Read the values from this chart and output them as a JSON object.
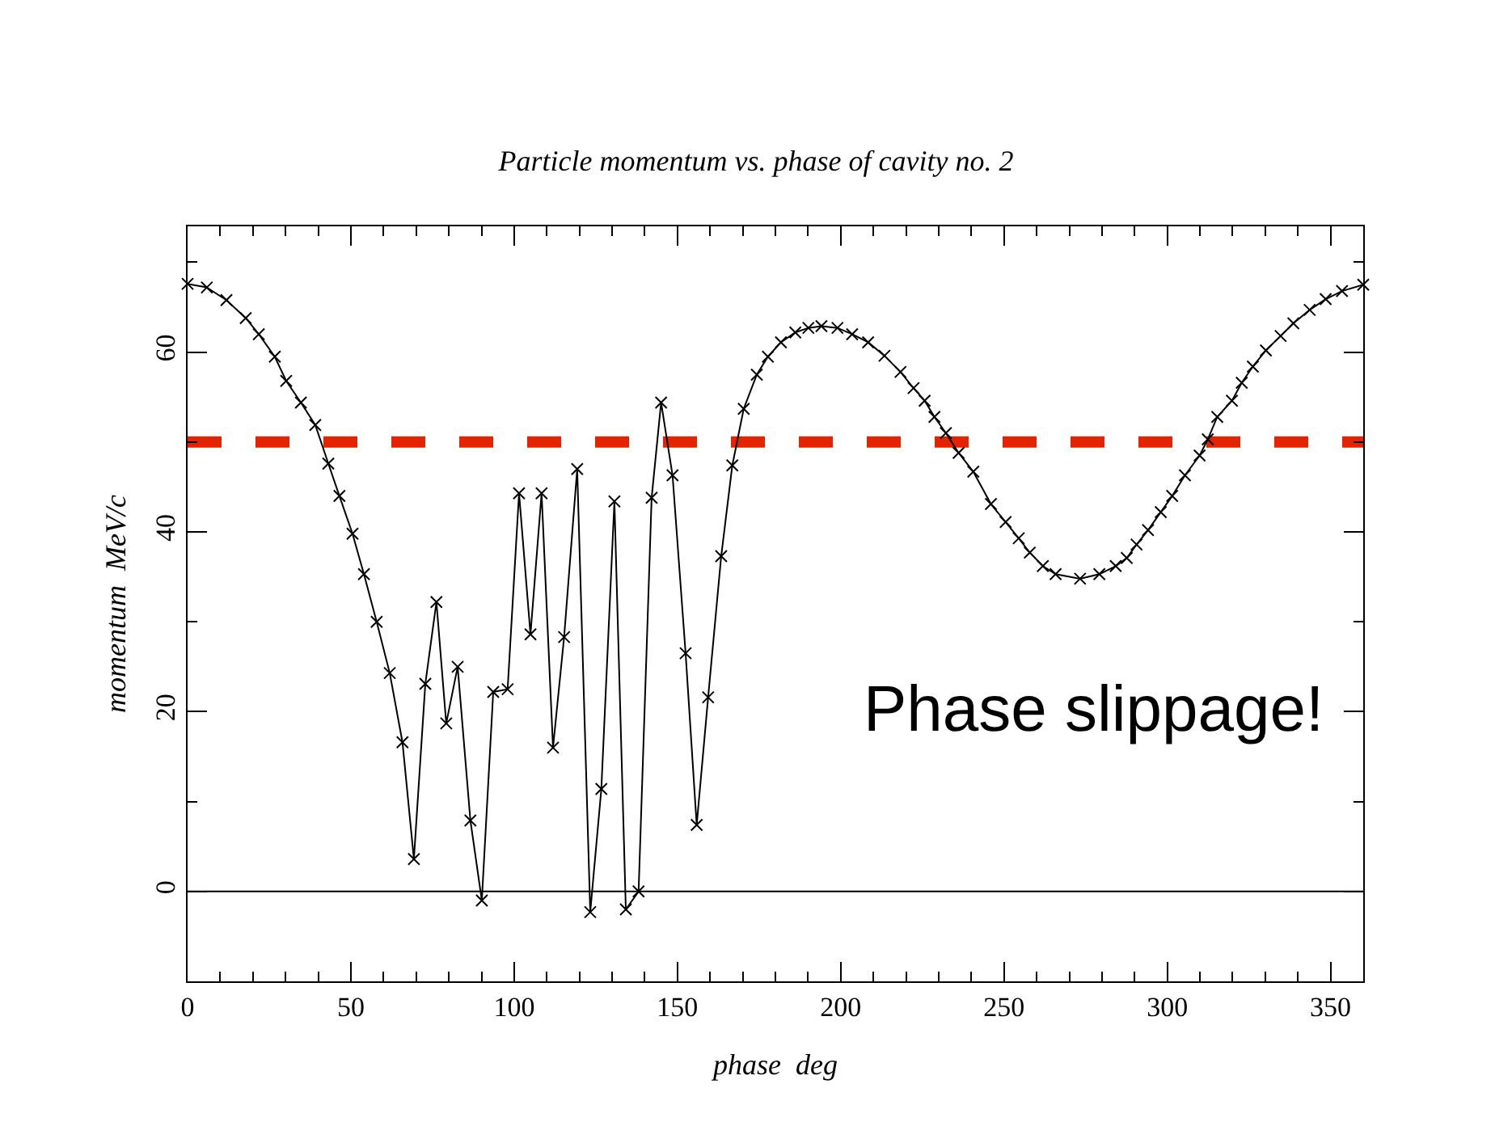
{
  "chart_data": {
    "type": "line",
    "title": "Particle momentum vs. phase of cavity no. 2",
    "xlabel": "phase  deg",
    "ylabel": "momentum  MeV/c",
    "x": [
      0,
      5.9,
      11.9,
      17.8,
      21.8,
      26.7,
      30.2,
      34.7,
      39.1,
      43.1,
      46.5,
      50.5,
      54,
      57.9,
      61.9,
      65.8,
      69.3,
      72.8,
      76.2,
      79.2,
      82.7,
      86.6,
      90.1,
      93.6,
      98,
      101.5,
      105,
      108.4,
      111.9,
      115.3,
      119.3,
      123.3,
      126.7,
      130.7,
      134.2,
      138.1,
      142.1,
      145,
      148.5,
      152.5,
      155.9,
      159.4,
      163.4,
      166.8,
      170.3,
      174.3,
      177.7,
      181.7,
      186.1,
      190.1,
      194.1,
      199,
      203.5,
      208.4,
      213.4,
      218.3,
      222.3,
      225.7,
      228.7,
      232.2,
      236.1,
      240.6,
      246,
      250.5,
      254.5,
      257.9,
      261.9,
      265.8,
      273.3,
      279.2,
      284.2,
      287.6,
      290.6,
      294.1,
      298,
      301.5,
      305.4,
      309.9,
      312.4,
      315.3,
      319.8,
      322.8,
      326.2,
      330.2,
      334.7,
      338.6,
      343.6,
      348.5,
      353.5,
      360
    ],
    "series": [
      {
        "color": "#000000",
        "values": [
          67.6,
          67.2,
          65.8,
          63.8,
          62,
          59.5,
          56.8,
          54.4,
          51.9,
          47.6,
          44,
          39.8,
          35.3,
          30,
          24.3,
          16.6,
          3.6,
          23.1,
          32.2,
          18.7,
          25,
          7.9,
          -1,
          22.2,
          22.5,
          44.3,
          28.6,
          44.3,
          16,
          28.3,
          47,
          -2.3,
          11.4,
          43.4,
          -2,
          0,
          43.8,
          54.4,
          46.3,
          26.5,
          7.4,
          21.6,
          37.3,
          47.4,
          53.7,
          57.5,
          59.5,
          61.1,
          62.2,
          62.7,
          62.9,
          62.7,
          62,
          61.1,
          59.6,
          57.8,
          56,
          54.6,
          52.8,
          51,
          48.8,
          46.7,
          43.1,
          41.1,
          39.3,
          37.7,
          36.2,
          35.3,
          34.8,
          35.3,
          36.2,
          37.1,
          38.6,
          40.2,
          42.2,
          44,
          46.3,
          48.5,
          50.3,
          52.8,
          54.6,
          56.6,
          58.4,
          60.2,
          61.8,
          63.2,
          64.7,
          65.9,
          66.8,
          67.5
        ]
      }
    ],
    "marker": "cross",
    "line_style": "solid",
    "xlim": [
      0,
      360
    ],
    "xticks": [
      0,
      50,
      100,
      150,
      200,
      250,
      300,
      350
    ],
    "ylim": [
      -10,
      74
    ],
    "yticks": [
      0,
      20,
      40,
      60
    ],
    "ref_lines": [
      {
        "axis": "y",
        "value": 50,
        "color": "#e32400",
        "line_style": "dashed"
      },
      {
        "axis": "y",
        "value": 0,
        "color": "#000000",
        "line_style": "solid"
      }
    ],
    "annotations": [
      "Phase slippage!"
    ],
    "grid": false,
    "legend": false
  }
}
